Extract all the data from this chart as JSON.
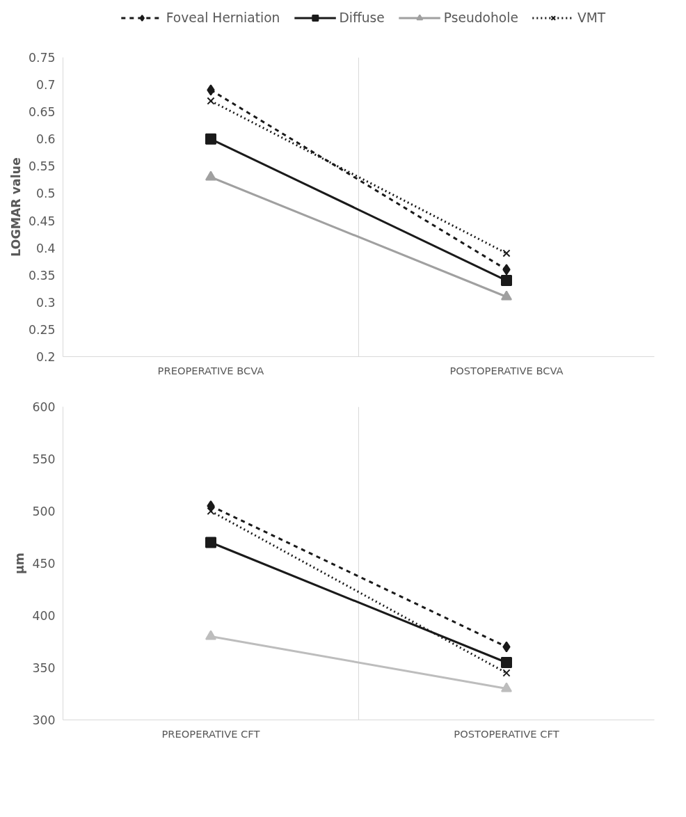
{
  "chart_data": [
    {
      "type": "line",
      "categories": [
        "PREOPERATIVE BCVA",
        "POSTOPERATIVE BCVA"
      ],
      "ylabel": "LOGMAR value",
      "ylim": [
        0.2,
        0.75
      ],
      "yticks": [
        0.2,
        0.25,
        0.3,
        0.35,
        0.4,
        0.45,
        0.5,
        0.55,
        0.6,
        0.65,
        0.7,
        0.75
      ],
      "grid": "x",
      "legend": "top",
      "series": [
        {
          "name": "Foveal Herniation",
          "color": "#1a1a1a",
          "values": [
            0.69,
            0.36
          ],
          "marker": "diamond",
          "line_style": "dashed"
        },
        {
          "name": "Diffuse",
          "color": "#1a1a1a",
          "values": [
            0.6,
            0.34
          ],
          "marker": "square",
          "line_style": "solid"
        },
        {
          "name": "Pseudohole",
          "color": "#a0a0a0",
          "values": [
            0.53,
            0.31
          ],
          "marker": "triangle",
          "line_style": "solid"
        },
        {
          "name": "VMT",
          "color": "#1a1a1a",
          "values": [
            0.67,
            0.39
          ],
          "marker": "cross",
          "line_style": "dotted"
        }
      ]
    },
    {
      "type": "line",
      "categories": [
        "PREOPERATIVE CFT",
        "POSTOPERATIVE CFT"
      ],
      "ylabel": "µm",
      "ylim": [
        300,
        600
      ],
      "yticks": [
        300,
        350,
        400,
        450,
        500,
        550,
        600
      ],
      "grid": "x",
      "legend": false,
      "series": [
        {
          "color": "#1a1a1a",
          "values": [
            505,
            370
          ],
          "marker": "diamond",
          "line_style": "dashed"
        },
        {
          "color": "#1a1a1a",
          "values": [
            470,
            355
          ],
          "marker": "square",
          "line_style": "solid"
        },
        {
          "color": "#bdbdbd",
          "values": [
            380,
            330
          ],
          "marker": "triangle",
          "line_style": "solid"
        },
        {
          "color": "#1a1a1a",
          "values": [
            500,
            345
          ],
          "marker": "cross",
          "line_style": "dotted"
        }
      ]
    }
  ]
}
